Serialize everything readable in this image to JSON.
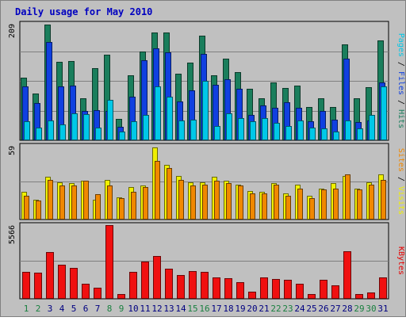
{
  "chart_data": {
    "title": "Daily usage for May 2010",
    "type": "bar",
    "days": [
      "1",
      "2",
      "3",
      "4",
      "5",
      "6",
      "7",
      "8",
      "9",
      "10",
      "11",
      "12",
      "13",
      "14",
      "15",
      "16",
      "17",
      "18",
      "19",
      "20",
      "21",
      "22",
      "23",
      "24",
      "25",
      "26",
      "27",
      "28",
      "29",
      "30",
      "31"
    ],
    "weekend_days": [
      "1",
      "2",
      "8",
      "9",
      "15",
      "16",
      "22",
      "23",
      "29",
      "30"
    ],
    "panels": [
      {
        "id": "hits-panel",
        "ymax": 209,
        "ymax_label": "209",
        "right_label": [
          {
            "text": "Pages",
            "color": "#00c8e8"
          },
          {
            "text": " / ",
            "color": "#000000"
          },
          {
            "text": "Files",
            "color": "#1040e0"
          },
          {
            "text": " / ",
            "color": "#000000"
          },
          {
            "text": "Hits",
            "color": "#1a7e5c"
          }
        ],
        "series": [
          {
            "name": "Hits",
            "color": "#1a7e5c",
            "values": [
              113,
              84,
              208,
              141,
              142,
              76,
              129,
              153,
              38,
              117,
              159,
              194,
              194,
              119,
              139,
              187,
              117,
              146,
              122,
              93,
              76,
              104,
              94,
              98,
              60,
              75,
              60,
              172,
              76,
              95,
              179
            ]
          },
          {
            "name": "Files",
            "color": "#1040e0",
            "values": [
              97,
              67,
              176,
              97,
              98,
              53,
              54,
              53,
              24,
              78,
              144,
              165,
              158,
              70,
              89,
              155,
              99,
              110,
              92,
              46,
              62,
              59,
              68,
              58,
              34,
              53,
              37,
              146,
              32,
              36,
              104
            ]
          },
          {
            "name": "Pages",
            "color": "#00c8e8",
            "values": [
              34,
              23,
              36,
              29,
              48,
              47,
              23,
              73,
              15,
              34,
              45,
              96,
              78,
              36,
              37,
              107,
              25,
              48,
              40,
              34,
              40,
              31,
              25,
              36,
              23,
              22,
              16,
              35,
              21,
              45,
              97
            ]
          }
        ]
      },
      {
        "id": "visits-panel",
        "ymax": 59,
        "ymax_label": "59",
        "right_label": [
          {
            "text": "Sites",
            "color": "#f08800"
          },
          {
            "text": " / ",
            "color": "#000000"
          },
          {
            "text": "Visits",
            "color": "#f0f000"
          }
        ],
        "series": [
          {
            "name": "Visits",
            "color": "#f0f000",
            "values": [
              22,
              16,
              34,
              30,
              29,
              31,
              16,
              32,
              18,
              26,
              27,
              58,
              44,
              35,
              30,
              30,
              34,
              31,
              28,
              23,
              22,
              29,
              21,
              28,
              19,
              25,
              29,
              35,
              25,
              30,
              36
            ]
          },
          {
            "name": "Sites",
            "color": "#f08800",
            "values": [
              19,
              15,
              32,
              27,
              27,
              31,
              20,
              27,
              17,
              22,
              26,
              47,
              41,
              32,
              27,
              28,
              31,
              29,
              27,
              21,
              21,
              28,
              19,
              25,
              17,
              24,
              25,
              36,
              24,
              28,
              32
            ]
          }
        ]
      },
      {
        "id": "kbytes-panel",
        "ymax": 5566,
        "ymax_label": "5566",
        "right_label": [
          {
            "text": "KBytes",
            "color": "#e80000"
          }
        ],
        "series": [
          {
            "name": "KBytes",
            "color": "#f01010",
            "values": [
              2031,
              1985,
              3529,
              2577,
              2328,
              1137,
              813,
              5566,
              359,
              2031,
              2812,
              3214,
              2292,
              1819,
              2097,
              2050,
              1596,
              1578,
              1280,
              540,
              1624,
              1481,
              1457,
              1132,
              352,
              1414,
              1034,
              3562,
              334,
              455,
              1644
            ]
          }
        ]
      }
    ]
  }
}
